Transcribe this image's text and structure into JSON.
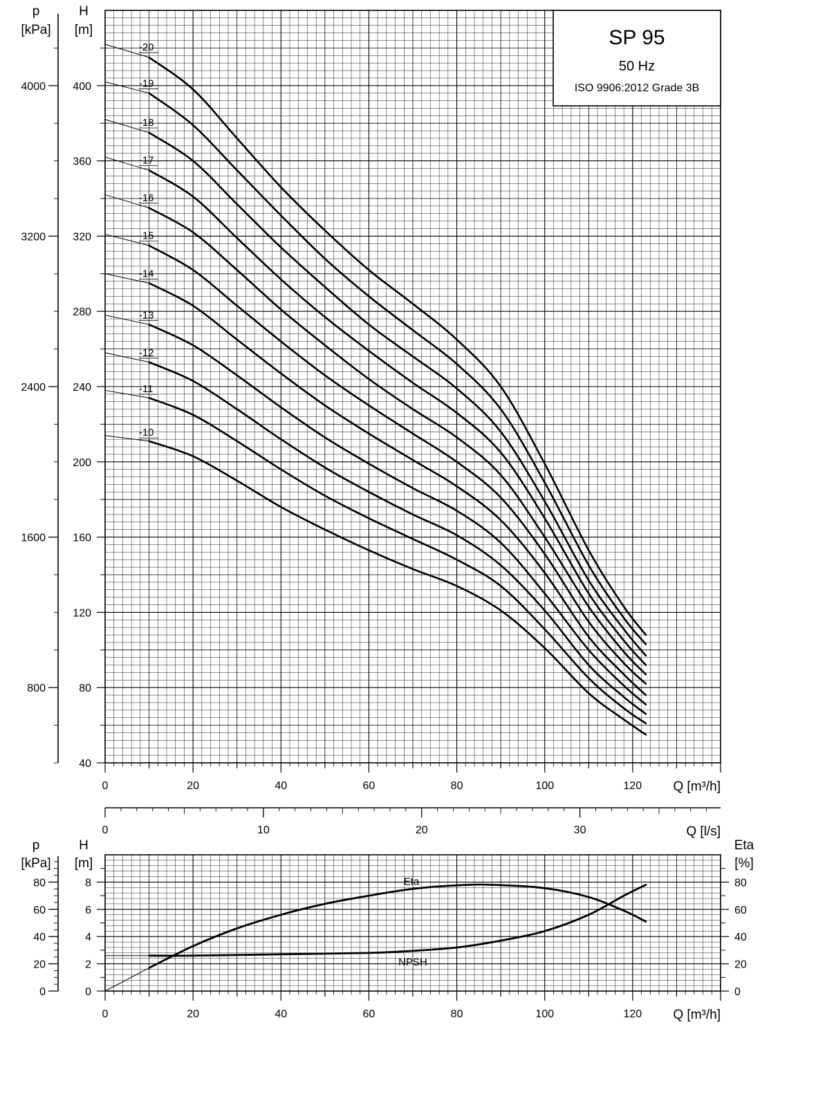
{
  "chart_data": [
    {
      "type": "line",
      "title": "SP 95",
      "subtitle": "50 Hz",
      "standard": "ISO 9906:2012 Grade 3B",
      "xlabel": "Q [m³/h]",
      "ylabel": "H [m]",
      "ylabel_p": "p [kPa]",
      "ylabel_lines": [
        "H",
        "[m]"
      ],
      "ylabel_p_lines": [
        "p",
        "[kPa]"
      ],
      "xlim": [
        0,
        140
      ],
      "ylim": [
        40,
        440
      ],
      "x_ticks": [
        0,
        20,
        40,
        60,
        80,
        100,
        120
      ],
      "y_ticks": [
        40,
        80,
        120,
        160,
        200,
        240,
        280,
        320,
        360,
        400
      ],
      "p_ticks": [
        800,
        1600,
        2400,
        3200,
        4000
      ],
      "x2_label": "Q [l/s]",
      "x2_ticks": [
        0,
        10,
        20,
        30
      ],
      "grid": true,
      "x_points": [
        0,
        10,
        20,
        30,
        40,
        50,
        60,
        70,
        80,
        90,
        100,
        110,
        118,
        123
      ],
      "series": [
        {
          "name": "-20",
          "values": [
            422,
            415,
            398,
            372,
            346,
            323,
            302,
            284,
            265,
            240,
            199,
            153,
            123,
            108
          ]
        },
        {
          "name": "-19",
          "values": [
            402,
            396,
            379,
            355,
            331,
            308,
            288,
            270,
            252,
            228,
            189,
            145,
            117,
            103
          ]
        },
        {
          "name": "-18",
          "values": [
            382,
            375,
            360,
            337,
            314,
            293,
            273,
            256,
            239,
            216,
            179,
            137,
            111,
            97
          ]
        },
        {
          "name": "-17",
          "values": [
            362,
            355,
            341,
            319,
            297,
            277,
            259,
            242,
            226,
            205,
            170,
            130,
            105,
            92
          ]
        },
        {
          "name": "-16",
          "values": [
            342,
            335,
            322,
            302,
            281,
            262,
            244,
            228,
            213,
            193,
            160,
            123,
            99,
            87
          ]
        },
        {
          "name": "-15",
          "values": [
            321,
            315,
            302,
            283,
            264,
            246,
            230,
            215,
            200,
            181,
            151,
            115,
            93,
            82
          ]
        },
        {
          "name": "-14",
          "values": [
            300,
            295,
            283,
            265,
            247,
            230,
            215,
            201,
            187,
            169,
            141,
            107,
            87,
            76
          ]
        },
        {
          "name": "-13",
          "values": [
            278,
            273,
            262,
            246,
            229,
            213,
            199,
            186,
            174,
            157,
            130,
            100,
            81,
            71
          ]
        },
        {
          "name": "-12",
          "values": [
            258,
            253,
            243,
            228,
            212,
            197,
            184,
            172,
            161,
            145,
            121,
            92,
            75,
            66
          ]
        },
        {
          "name": "-11",
          "values": [
            238,
            234,
            225,
            211,
            196,
            182,
            170,
            159,
            148,
            134,
            111,
            85,
            69,
            61
          ]
        },
        {
          "name": "-10",
          "values": [
            214,
            211,
            203,
            190,
            176,
            164,
            153,
            143,
            134,
            121,
            101,
            77,
            63,
            55
          ]
        }
      ]
    },
    {
      "type": "line",
      "xlabel": "Q [m³/h]",
      "ylabel": "H [m]",
      "ylabel_p": "p [kPa]",
      "ylabel_right": "Eta [%]",
      "ylabel_lines": [
        "H",
        "[m]"
      ],
      "ylabel_p_lines": [
        "p",
        "[kPa]"
      ],
      "ylabel_right_lines": [
        "Eta",
        "[%]"
      ],
      "xlim": [
        0,
        140
      ],
      "ylim": [
        0,
        10
      ],
      "x_ticks": [
        0,
        20,
        40,
        60,
        80,
        100,
        120
      ],
      "h_ticks": [
        0,
        2,
        4,
        6,
        8
      ],
      "p_ticks": [
        0,
        20,
        40,
        60,
        80
      ],
      "eta_ticks": [
        0,
        20,
        40,
        60,
        80
      ],
      "grid": true,
      "series": [
        {
          "name": "Eta",
          "unit": "%",
          "x": [
            10,
            20,
            30,
            40,
            50,
            60,
            70,
            80,
            88,
            100,
            110,
            118,
            123
          ],
          "values": [
            17,
            33,
            46,
            56,
            64,
            70,
            75,
            77.6,
            78,
            75.5,
            69,
            59,
            51
          ]
        },
        {
          "name": "NPSH",
          "unit": "m",
          "x": [
            10,
            20,
            40,
            60,
            70,
            80,
            90,
            100,
            110,
            118,
            123
          ],
          "values": [
            2.6,
            2.6,
            2.7,
            2.8,
            2.95,
            3.2,
            3.7,
            4.4,
            5.6,
            7.0,
            7.8
          ]
        }
      ]
    }
  ]
}
